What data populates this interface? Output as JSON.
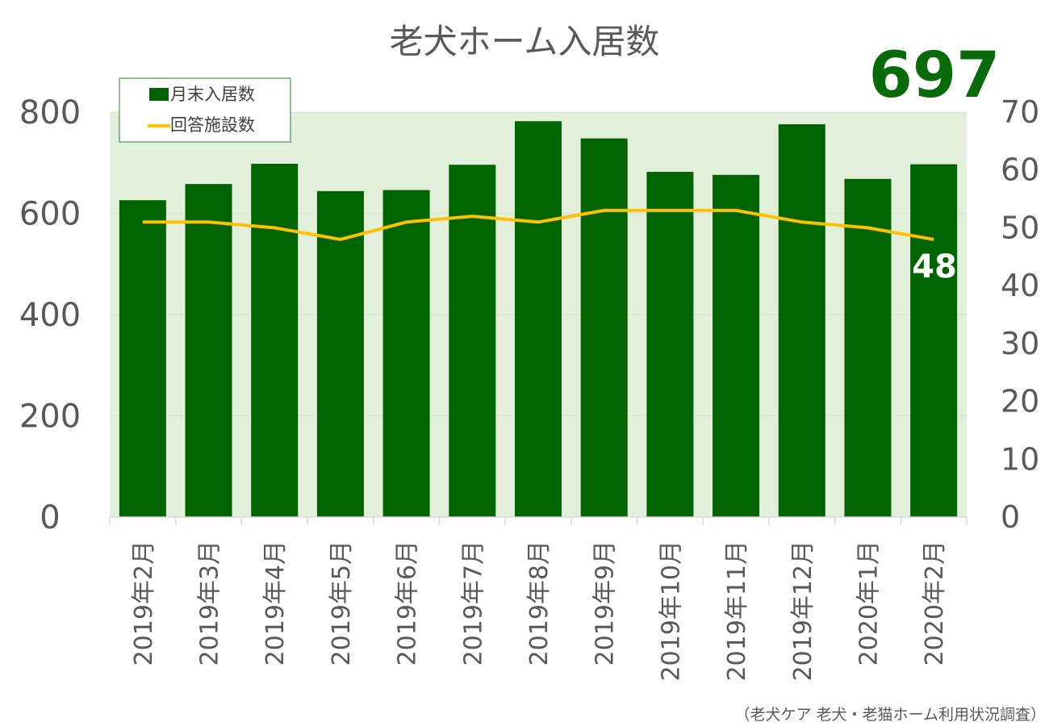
{
  "colors": {
    "bar": "#006400",
    "line": "#ffc000",
    "plot_bg": "#e2efda",
    "big_number": "#0a6b0a",
    "legend_border": "#2e7d32"
  },
  "chart_data": {
    "type": "bar",
    "title": "老犬ホーム入居数",
    "categories": [
      "2019年2月",
      "2019年3月",
      "2019年4月",
      "2019年5月",
      "2019年6月",
      "2019年7月",
      "2019年8月",
      "2019年9月",
      "2019年10月",
      "2019年11月",
      "2019年12月",
      "2020年1月",
      "2020年2月"
    ],
    "series": [
      {
        "name": "月末入居数",
        "kind": "bar",
        "axis": "left",
        "values": [
          626,
          658,
          698,
          644,
          646,
          696,
          782,
          748,
          682,
          676,
          776,
          668,
          697
        ]
      },
      {
        "name": "回答施設数",
        "kind": "line",
        "axis": "right",
        "values": [
          51,
          51,
          50,
          48,
          51,
          52,
          51,
          53,
          53,
          53,
          51,
          50,
          48
        ]
      }
    ],
    "ylim_left": [
      0,
      800
    ],
    "yticks_left": [
      "0",
      "200",
      "400",
      "600",
      "800"
    ],
    "ylim_right": [
      0,
      70
    ],
    "yticks_right": [
      "0",
      "10",
      "20",
      "30",
      "40",
      "50",
      "60",
      "70"
    ],
    "highlight_bar_value": "697",
    "line_end_label": "48",
    "legend_position": "top-left",
    "grid": true
  },
  "source_note": "（老犬ケア 老犬・老猫ホーム利用状況調査）"
}
